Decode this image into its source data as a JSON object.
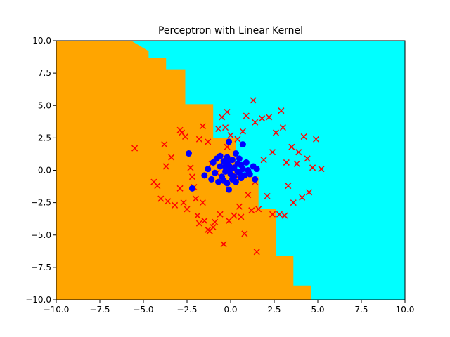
{
  "chart_data": {
    "type": "scatter",
    "title": "Perceptron with Linear Kernel",
    "xlabel": "",
    "ylabel": "",
    "xlim": [
      -10.0,
      10.0
    ],
    "ylim": [
      -10.0,
      10.0
    ],
    "xticks": [
      -10.0,
      -7.5,
      -5.0,
      -2.5,
      0.0,
      2.5,
      5.0,
      7.5,
      10.0
    ],
    "yticks": [
      -10.0,
      -7.5,
      -5.0,
      -2.5,
      0.0,
      2.5,
      5.0,
      7.5,
      10.0
    ],
    "xtick_labels": [
      "−10.0",
      "−7.5",
      "−5.0",
      "−2.5",
      "0.0",
      "2.5",
      "5.0",
      "7.5",
      "10.0"
    ],
    "ytick_labels": [
      "−10.0",
      "−7.5",
      "−5.0",
      "−2.5",
      "0.0",
      "2.5",
      "5.0",
      "7.5",
      "10.0"
    ],
    "grid": false,
    "background": {
      "type": "decision_regions",
      "colors": {
        "negative": "#ffa500",
        "positive": "#00ffff"
      },
      "boundary_steps": [
        [
          -5.7,
          10.0
        ],
        [
          -4.7,
          9.2
        ],
        [
          -4.7,
          8.7
        ],
        [
          -3.7,
          8.7
        ],
        [
          -3.7,
          7.8
        ],
        [
          -2.6,
          7.8
        ],
        [
          -2.6,
          5.1
        ],
        [
          -1.0,
          5.1
        ],
        [
          -1.0,
          2.5
        ],
        [
          0.3,
          2.5
        ],
        [
          0.3,
          -0.5
        ],
        [
          1.6,
          -0.5
        ],
        [
          1.6,
          -3.0
        ],
        [
          2.6,
          -3.0
        ],
        [
          2.6,
          -6.6
        ],
        [
          3.6,
          -6.6
        ],
        [
          3.6,
          -8.9
        ],
        [
          4.6,
          -8.9
        ],
        [
          4.6,
          -10.0
        ]
      ]
    },
    "series": [
      {
        "marker": "x",
        "color": "#ff0000",
        "points": [
          [
            -5.5,
            1.7
          ],
          [
            -4.4,
            -0.9
          ],
          [
            -4.2,
            -1.2
          ],
          [
            -3.8,
            2.0
          ],
          [
            -3.7,
            0.3
          ],
          [
            -3.6,
            -2.4
          ],
          [
            -3.4,
            1.0
          ],
          [
            -3.2,
            -2.7
          ],
          [
            -2.9,
            3.1
          ],
          [
            -2.9,
            -1.4
          ],
          [
            -2.7,
            -2.5
          ],
          [
            -2.6,
            2.6
          ],
          [
            -2.5,
            -3.0
          ],
          [
            -2.3,
            0.2
          ],
          [
            -2.2,
            -0.5
          ],
          [
            -2.1,
            -1.3
          ],
          [
            -2.0,
            -2.2
          ],
          [
            -1.9,
            -3.5
          ],
          [
            -1.8,
            -4.1
          ],
          [
            -1.8,
            2.4
          ],
          [
            -1.6,
            3.4
          ],
          [
            -1.6,
            -2.5
          ],
          [
            -1.5,
            -3.9
          ],
          [
            -1.3,
            -4.6
          ],
          [
            -1.2,
            -4.7
          ],
          [
            -1.1,
            0.5
          ],
          [
            -0.9,
            -4.0
          ],
          [
            -0.8,
            -0.2
          ],
          [
            -0.7,
            3.2
          ],
          [
            -0.6,
            -3.4
          ],
          [
            -0.5,
            4.1
          ],
          [
            -0.3,
            3.3
          ],
          [
            -0.2,
            4.5
          ],
          [
            -0.1,
            -3.9
          ],
          [
            0.0,
            2.7
          ],
          [
            0.2,
            -3.5
          ],
          [
            0.3,
            -0.4
          ],
          [
            0.5,
            -2.8
          ],
          [
            0.6,
            -3.6
          ],
          [
            0.7,
            3.0
          ],
          [
            0.9,
            4.2
          ],
          [
            1.0,
            -1.9
          ],
          [
            1.2,
            -3.1
          ],
          [
            1.3,
            5.4
          ],
          [
            1.4,
            -0.9
          ],
          [
            1.6,
            -3.0
          ],
          [
            1.8,
            4.0
          ],
          [
            1.9,
            0.8
          ],
          [
            2.1,
            -2.0
          ],
          [
            2.4,
            1.4
          ],
          [
            2.4,
            -3.4
          ],
          [
            2.6,
            2.9
          ],
          [
            2.8,
            -3.4
          ],
          [
            3.0,
            3.3
          ],
          [
            3.1,
            -3.5
          ],
          [
            3.2,
            0.6
          ],
          [
            3.3,
            -1.2
          ],
          [
            3.5,
            1.8
          ],
          [
            3.6,
            -2.5
          ],
          [
            3.8,
            0.5
          ],
          [
            3.9,
            1.4
          ],
          [
            4.1,
            -2.1
          ],
          [
            4.2,
            2.6
          ],
          [
            4.4,
            0.9
          ],
          [
            4.5,
            -1.7
          ],
          [
            4.7,
            0.2
          ],
          [
            4.9,
            2.4
          ],
          [
            5.2,
            0.1
          ],
          [
            -0.4,
            -5.7
          ],
          [
            1.5,
            -6.3
          ],
          [
            0.8,
            -4.9
          ],
          [
            -1.0,
            -4.4
          ],
          [
            -2.8,
            2.9
          ],
          [
            -1.3,
            2.2
          ],
          [
            -0.2,
            1.8
          ],
          [
            0.4,
            2.4
          ],
          [
            1.4,
            3.7
          ],
          [
            2.2,
            4.1
          ],
          [
            2.9,
            4.6
          ],
          [
            -4.0,
            -2.2
          ]
        ]
      },
      {
        "marker": "o",
        "color": "#0000ff",
        "points": [
          [
            -2.4,
            1.3
          ],
          [
            -2.2,
            -1.4
          ],
          [
            -1.5,
            -0.4
          ],
          [
            -1.3,
            0.1
          ],
          [
            -1.1,
            -0.7
          ],
          [
            -1.0,
            0.6
          ],
          [
            -0.9,
            -0.2
          ],
          [
            -0.8,
            0.9
          ],
          [
            -0.7,
            -0.9
          ],
          [
            -0.6,
            0.3
          ],
          [
            -0.5,
            -0.5
          ],
          [
            -0.4,
            0.7
          ],
          [
            -0.3,
            -0.1
          ],
          [
            -0.2,
            1.0
          ],
          [
            -0.2,
            -1.0
          ],
          [
            -0.1,
            0.4
          ],
          [
            0.0,
            -0.3
          ],
          [
            0.1,
            0.8
          ],
          [
            0.1,
            -0.7
          ],
          [
            0.2,
            0.2
          ],
          [
            0.3,
            -0.9
          ],
          [
            0.3,
            1.3
          ],
          [
            0.4,
            0.5
          ],
          [
            0.5,
            -0.2
          ],
          [
            0.5,
            0.9
          ],
          [
            0.6,
            -0.6
          ],
          [
            0.7,
            0.1
          ],
          [
            0.7,
            2.0
          ],
          [
            0.8,
            -0.4
          ],
          [
            0.9,
            0.6
          ],
          [
            1.0,
            0.0
          ],
          [
            1.1,
            -0.3
          ],
          [
            1.3,
            0.3
          ],
          [
            1.4,
            -0.7
          ],
          [
            1.5,
            0.1
          ],
          [
            -0.1,
            2.2
          ],
          [
            -0.1,
            -1.5
          ],
          [
            -0.6,
            1.1
          ],
          [
            -0.4,
            -0.8
          ],
          [
            0.2,
            -0.5
          ],
          [
            0.0,
            0.1
          ],
          [
            0.4,
            -0.1
          ],
          [
            -0.2,
            0.6
          ],
          [
            0.6,
            0.4
          ],
          [
            -0.3,
            0.3
          ]
        ]
      }
    ]
  }
}
